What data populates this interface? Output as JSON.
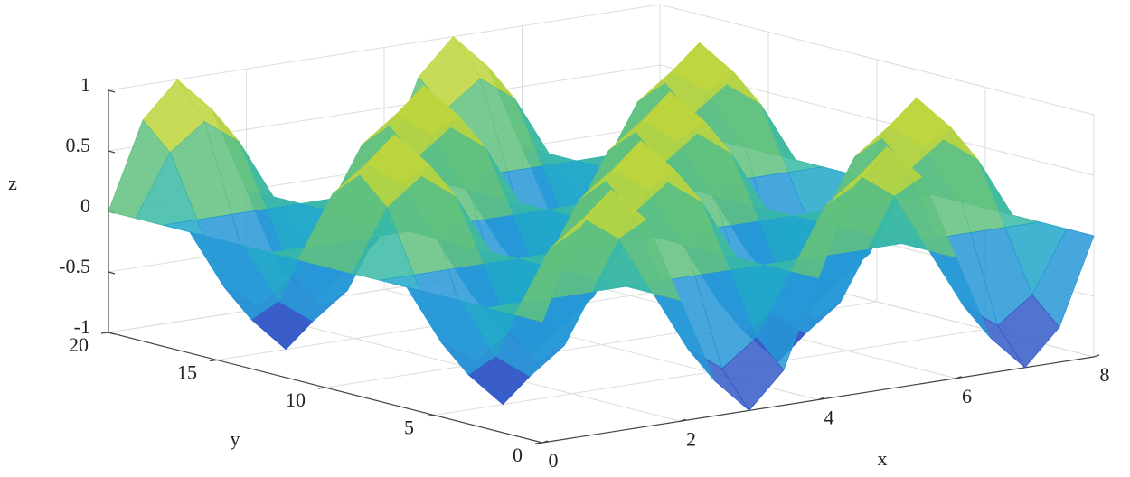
{
  "chart_data": {
    "type": "surface",
    "x_label": "x",
    "y_label": "y",
    "z_label": "z",
    "x": [
      0,
      0.5,
      1,
      1.5,
      2,
      2.5,
      3,
      3.5,
      4,
      4.5,
      5,
      5.5,
      6,
      6.5,
      7,
      7.5,
      8
    ],
    "y": [
      0,
      1.25,
      2.5,
      3.75,
      5,
      6.25,
      7.5,
      8.75,
      10,
      11.25,
      12.5,
      13.75,
      15,
      16.25,
      17.5,
      18.75,
      20
    ],
    "z": [
      [
        0,
        0.71,
        1,
        0.71,
        0,
        -0.71,
        -1,
        -0.71,
        0,
        0.71,
        1,
        0.71,
        0,
        -0.71,
        -1,
        -0.71,
        0
      ],
      [
        0,
        0.5,
        0.71,
        0.5,
        0,
        -0.5,
        -0.71,
        -0.5,
        0,
        0.5,
        0.71,
        0.5,
        0,
        -0.5,
        -0.71,
        -0.5,
        0
      ],
      [
        0,
        0,
        0,
        0,
        0,
        0,
        0,
        0,
        0,
        0,
        0,
        0,
        0,
        0,
        0,
        0,
        0
      ],
      [
        0,
        -0.5,
        -0.71,
        -0.5,
        0,
        0.5,
        0.71,
        0.5,
        0,
        -0.5,
        -0.71,
        -0.5,
        0,
        0.5,
        0.71,
        0.5,
        0
      ],
      [
        0,
        -0.71,
        -1,
        -0.71,
        0,
        0.71,
        1,
        0.71,
        0,
        -0.71,
        -1,
        -0.71,
        0,
        0.71,
        1,
        0.71,
        0
      ],
      [
        0,
        -0.5,
        -0.71,
        -0.5,
        0,
        0.5,
        0.71,
        0.5,
        0,
        -0.5,
        -0.71,
        -0.5,
        0,
        0.5,
        0.71,
        0.5,
        0
      ],
      [
        0,
        0,
        0,
        0,
        0,
        0,
        0,
        0,
        0,
        0,
        0,
        0,
        0,
        0,
        0,
        0,
        0
      ],
      [
        0,
        0.5,
        0.71,
        0.5,
        0,
        -0.5,
        -0.71,
        -0.5,
        0,
        0.5,
        0.71,
        0.5,
        0,
        -0.5,
        -0.71,
        -0.5,
        0
      ],
      [
        0,
        0.71,
        1,
        0.71,
        0,
        -0.71,
        -1,
        -0.71,
        0,
        0.71,
        1,
        0.71,
        0,
        -0.71,
        -1,
        -0.71,
        0
      ],
      [
        0,
        0.5,
        0.71,
        0.5,
        0,
        -0.5,
        -0.71,
        -0.5,
        0,
        0.5,
        0.71,
        0.5,
        0,
        -0.5,
        -0.71,
        -0.5,
        0
      ],
      [
        0,
        0,
        0,
        0,
        0,
        0,
        0,
        0,
        0,
        0,
        0,
        0,
        0,
        0,
        0,
        0,
        0
      ],
      [
        0,
        -0.5,
        -0.71,
        -0.5,
        0,
        0.5,
        0.71,
        0.5,
        0,
        -0.5,
        -0.71,
        -0.5,
        0,
        0.5,
        0.71,
        0.5,
        0
      ],
      [
        0,
        -0.71,
        -1,
        -0.71,
        0,
        0.71,
        1,
        0.71,
        0,
        -0.71,
        -1,
        -0.71,
        0,
        0.71,
        1,
        0.71,
        0
      ],
      [
        0,
        -0.5,
        -0.71,
        -0.5,
        0,
        0.5,
        0.71,
        0.5,
        0,
        -0.5,
        -0.71,
        -0.5,
        0,
        0.5,
        0.71,
        0.5,
        0
      ],
      [
        0,
        0,
        0,
        0,
        0,
        0,
        0,
        0,
        0,
        0,
        0,
        0,
        0,
        0,
        0,
        0,
        0
      ],
      [
        0,
        0.5,
        0.71,
        0.5,
        0,
        -0.5,
        -0.71,
        -0.5,
        0,
        0.5,
        0.71,
        0.5,
        0,
        -0.5,
        -0.71,
        -0.5,
        0
      ],
      [
        0,
        0.71,
        1,
        0.71,
        0,
        -0.71,
        -1,
        -0.71,
        0,
        0.71,
        1,
        0.71,
        0,
        -0.71,
        -1,
        -0.71,
        0
      ]
    ],
    "colormap": [
      "#3e26a8",
      "#2e87e6",
      "#1db1bf",
      "#8ccb55",
      "#f9e11e"
    ],
    "xlim": [
      0,
      8
    ],
    "xticks": [
      0,
      2,
      4,
      6,
      8
    ],
    "ylim": [
      0,
      20
    ],
    "yticks": [
      0,
      5,
      10,
      15,
      20
    ],
    "zlim": [
      -1,
      1
    ],
    "zticks": [
      -1,
      -0.5,
      0,
      0.5,
      1
    ],
    "grid": true
  }
}
